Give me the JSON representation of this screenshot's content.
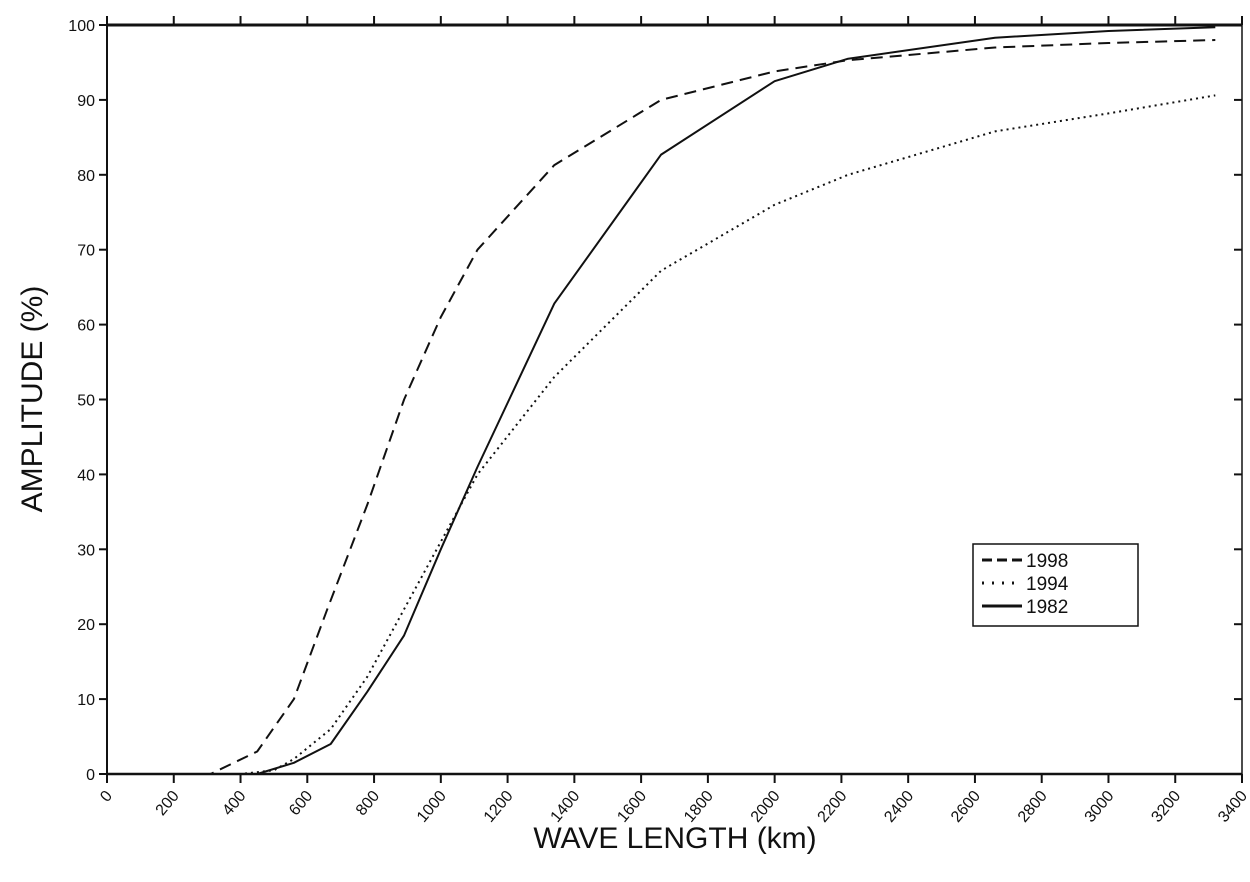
{
  "chart_data": {
    "type": "line",
    "xlabel": "WAVE LENGTH (km)",
    "ylabel": "AMPLITUDE (%)",
    "xlim": [
      0,
      3400
    ],
    "ylim": [
      0,
      100
    ],
    "xticks": [
      "0",
      "200",
      "400",
      "600",
      "800",
      "1000",
      "1200",
      "1400",
      "1600",
      "1800",
      "2000",
      "2200",
      "2400",
      "2600",
      "2800",
      "3000",
      "3200",
      "3400"
    ],
    "yticks": [
      "0",
      "10",
      "20",
      "30",
      "40",
      "50",
      "60",
      "70",
      "80",
      "90",
      "100"
    ],
    "legend_position": "lower-right",
    "grid": false,
    "series": [
      {
        "name": "1998",
        "style": "dashed",
        "x": [
          0,
          250,
          310,
          450,
          560,
          660,
          780,
          890,
          1000,
          1110,
          1340,
          1660,
          2000,
          2220,
          2660,
          3000,
          3320
        ],
        "y": [
          0,
          0,
          0,
          3,
          10,
          22,
          36,
          50,
          61,
          70,
          81.3,
          90,
          93.8,
          95.3,
          97,
          97.6,
          98
        ]
      },
      {
        "name": "1994",
        "style": "dotted",
        "x": [
          0,
          280,
          400,
          500,
          560,
          670,
          780,
          890,
          1000,
          1110,
          1340,
          1660,
          2000,
          2220,
          2660,
          3000,
          3320
        ],
        "y": [
          0,
          0,
          0,
          0.5,
          2,
          6,
          13,
          22,
          31,
          40,
          53,
          67.2,
          76,
          80,
          85.8,
          88.2,
          90.6
        ]
      },
      {
        "name": "1982",
        "style": "solid",
        "x": [
          0,
          300,
          450,
          560,
          670,
          780,
          890,
          1000,
          1110,
          1340,
          1660,
          2000,
          2220,
          2660,
          3000,
          3320
        ],
        "y": [
          0,
          0,
          0,
          1.5,
          4,
          11,
          18.5,
          30,
          41,
          62.8,
          82.7,
          92.5,
          95.5,
          98.3,
          99.2,
          99.7
        ]
      }
    ]
  }
}
